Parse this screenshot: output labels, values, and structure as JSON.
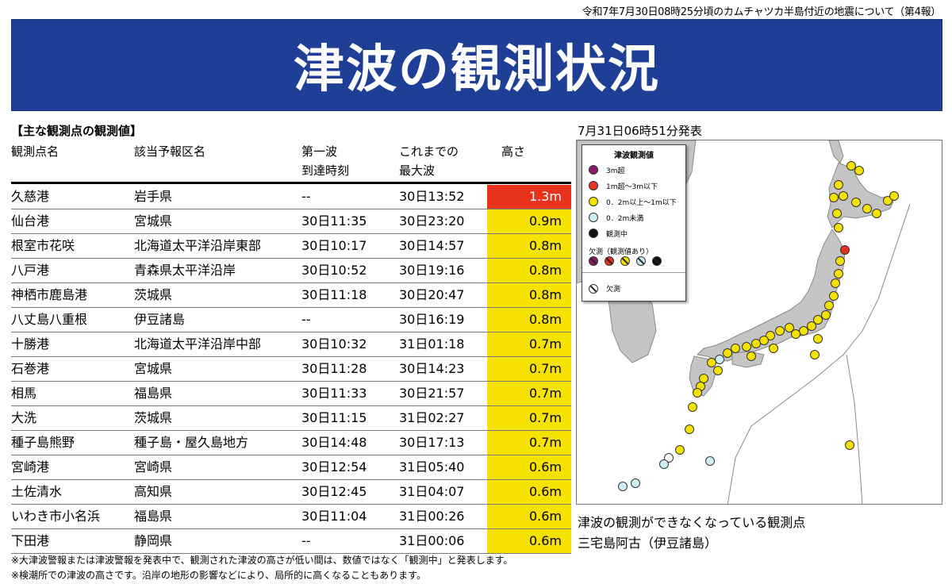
{
  "header": {
    "subtitle": "令和7年7月30日08時25分頃のカムチャツカ半島付近の地震について（第4報）",
    "title": "津波の観測状況"
  },
  "table": {
    "section_title": "【主な観測点の観測値】",
    "columns": {
      "name": "観測点名",
      "region": "該当予報区名",
      "first_wave_1": "第一波",
      "first_wave_2": "到達時刻",
      "max_wave_1": "これまでの",
      "max_wave_2": "最大波",
      "height": "高さ"
    },
    "rows": [
      {
        "name": "久慈港",
        "region": "岩手県",
        "first": "--",
        "max": "30日13:52",
        "height": "1.3m",
        "level": "red"
      },
      {
        "name": "仙台港",
        "region": "宮城県",
        "first": "30日11:35",
        "max": "30日23:20",
        "height": "0.9m",
        "level": "yellow"
      },
      {
        "name": "根室市花咲",
        "region": "北海道太平洋沿岸東部",
        "first": "30日10:17",
        "max": "30日14:57",
        "height": "0.8m",
        "level": "yellow"
      },
      {
        "name": "八戸港",
        "region": "青森県太平洋沿岸",
        "first": "30日10:52",
        "max": "30日19:16",
        "height": "0.8m",
        "level": "yellow"
      },
      {
        "name": "神栖市鹿島港",
        "region": "茨城県",
        "first": "30日11:18",
        "max": "30日20:47",
        "height": "0.8m",
        "level": "yellow"
      },
      {
        "name": "八丈島八重根",
        "region": "伊豆諸島",
        "first": "--",
        "max": "30日16:19",
        "height": "0.8m",
        "level": "yellow"
      },
      {
        "name": "十勝港",
        "region": "北海道太平洋沿岸中部",
        "first": "30日10:32",
        "max": "31日01:18",
        "height": "0.7m",
        "level": "yellow"
      },
      {
        "name": "石巻港",
        "region": "宮城県",
        "first": "30日11:28",
        "max": "30日14:23",
        "height": "0.7m",
        "level": "yellow"
      },
      {
        "name": "相馬",
        "region": "福島県",
        "first": "30日11:33",
        "max": "30日21:57",
        "height": "0.7m",
        "level": "yellow"
      },
      {
        "name": "大洗",
        "region": "茨城県",
        "first": "30日11:15",
        "max": "31日02:27",
        "height": "0.7m",
        "level": "yellow"
      },
      {
        "name": "種子島熊野",
        "region": "種子島・屋久島地方",
        "first": "30日14:48",
        "max": "30日17:13",
        "height": "0.7m",
        "level": "yellow"
      },
      {
        "name": "宮崎港",
        "region": "宮崎県",
        "first": "30日12:54",
        "max": "31日05:40",
        "height": "0.6m",
        "level": "yellow"
      },
      {
        "name": "土佐清水",
        "region": "高知県",
        "first": "30日12:45",
        "max": "31日04:07",
        "height": "0.6m",
        "level": "yellow"
      },
      {
        "name": "いわき市小名浜",
        "region": "福島県",
        "first": "30日11:04",
        "max": "31日00:26",
        "height": "0.6m",
        "level": "yellow"
      },
      {
        "name": "下田港",
        "region": "静岡県",
        "first": "--",
        "max": "31日00:06",
        "height": "0.6m",
        "level": "yellow"
      }
    ],
    "notes": [
      "※大津波警報または津波警報を発表中で、観測された津波の高さが低い間は、数値ではなく「観測中」と発表します。",
      "※検潮所での津波の高さです。沿岸の地形の影響などにより、局所的に高くなることもあります。"
    ]
  },
  "map": {
    "issued": "7月31日06時51分発表",
    "legend": {
      "title": "津波観測値",
      "items": [
        {
          "label": "3m超",
          "color": "#8b1a6b"
        },
        {
          "label": "1m超～3m以下",
          "color": "#e8321e"
        },
        {
          "label": "0．2m以上～1m以下",
          "color": "#f5e200"
        },
        {
          "label": "0．2m未満",
          "color": "#cdeef5"
        },
        {
          "label": "観測中",
          "color": "#111111"
        }
      ],
      "missing_title": "欠測（観測値あり）",
      "missing_colors": [
        "#8b1a6b",
        "#e8321e",
        "#f5e200",
        "#cdeef5",
        "#111111"
      ],
      "no_obs_label": "欠測"
    },
    "caption_line1": "津波の観測ができなくなっている観測点",
    "caption_line2": "三宅島阿古（伊豆諸島）"
  },
  "colors": {
    "banner": "#1f3e96",
    "red": "#e8321e",
    "yellow": "#f5e200"
  }
}
